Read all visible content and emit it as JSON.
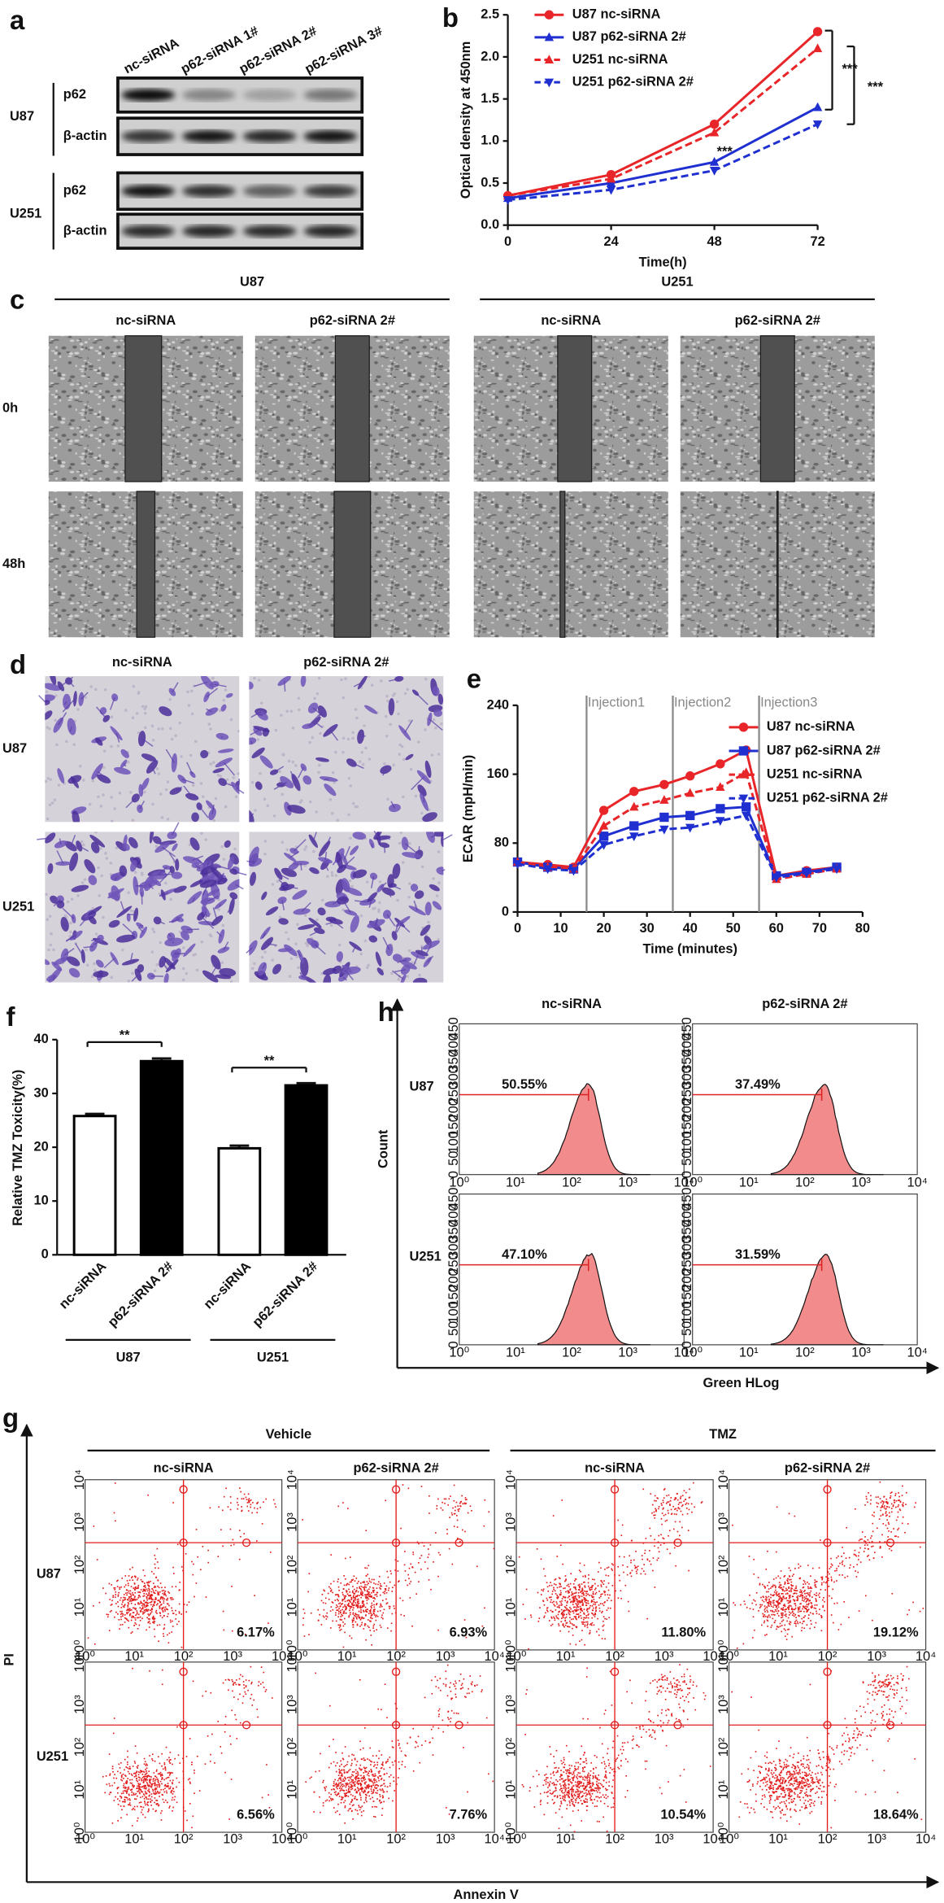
{
  "blot": {
    "label": "a",
    "lanes": [
      "nc-siRNA",
      "p62-siRNA 1#",
      "p62-siRNA 2#",
      "p62-siRNA 3#"
    ],
    "cells": [
      "U87",
      "U251"
    ],
    "proteins": [
      "p62",
      "β-actin"
    ]
  },
  "wound": {
    "label": "c",
    "cells": [
      "U87",
      "U251"
    ],
    "conditions": [
      "nc-siRNA",
      "p62-siRNA 2#"
    ],
    "times": [
      "0h",
      "48h"
    ]
  },
  "transwell": {
    "label": "d",
    "conditions": [
      "nc-siRNA",
      "p62-siRNA 2#"
    ],
    "cells": [
      "U87",
      "U251"
    ]
  },
  "flow": {
    "label": "h",
    "conditions": [
      "nc-siRNA",
      "p62-siRNA 2#"
    ],
    "cells": [
      "U87",
      "U251"
    ],
    "percent": [
      [
        "50.55%",
        "37.49%"
      ],
      [
        "47.10%",
        "31.59%"
      ]
    ],
    "xlabel": "Green HLog",
    "ylabel": "Count",
    "yticks": [
      0,
      50,
      100,
      150,
      200,
      250,
      300,
      350,
      400,
      450
    ],
    "xticks": [
      "10⁰",
      "10¹",
      "10²",
      "10³",
      "10⁴"
    ]
  },
  "apoptosis": {
    "label": "g",
    "treatments": [
      "Vehicle",
      "TMZ"
    ],
    "conditions": [
      "nc-siRNA",
      "p62-siRNA 2#"
    ],
    "cells": [
      "U87",
      "U251"
    ],
    "percent": [
      [
        "6.17%",
        "6.93%",
        "11.80%",
        "19.12%"
      ],
      [
        "6.56%",
        "7.76%",
        "10.54%",
        "18.64%"
      ]
    ],
    "xlabel": "Annexin V",
    "ylabel": "PI",
    "ticks": [
      "10⁰",
      "10¹",
      "10²",
      "10³",
      "10⁴"
    ]
  },
  "chart_data": [
    {
      "type": "line",
      "panel": "b",
      "x": [
        0,
        24,
        48,
        72
      ],
      "xlim": [
        0,
        72
      ],
      "xticks": [
        0,
        24,
        48,
        72
      ],
      "ylim": [
        0,
        2.5
      ],
      "yticks": [
        {
          "value": 0,
          "label": "0.0"
        },
        0.5,
        {
          "value": 1,
          "label": "1.0"
        },
        1.5,
        {
          "value": 2,
          "label": "2.0"
        },
        2.5
      ],
      "xlabel": "Time(h)",
      "ylabel": "Optical density at 450nm",
      "annotations": [
        "***",
        "***",
        "***"
      ],
      "series": [
        {
          "name": "U87 nc-siRNA",
          "color": "#e8262a",
          "dash": false,
          "marker": "circle",
          "values": [
            0.35,
            0.6,
            1.2,
            2.3
          ]
        },
        {
          "name": "U87 p62-siRNA 2#",
          "color": "#1f2fd0",
          "dash": false,
          "marker": "triangle",
          "values": [
            0.32,
            0.5,
            0.75,
            1.4
          ]
        },
        {
          "name": "U251 nc-siRNA",
          "color": "#e8262a",
          "dash": true,
          "marker": "triangle",
          "values": [
            0.35,
            0.55,
            1.1,
            2.1
          ]
        },
        {
          "name": "U251 p62-siRNA 2#",
          "color": "#1f2fd0",
          "dash": true,
          "marker": "triangle-down",
          "values": [
            0.3,
            0.42,
            0.65,
            1.2
          ]
        }
      ]
    },
    {
      "type": "line",
      "panel": "e",
      "x": [
        0,
        7,
        13,
        20,
        27,
        34,
        40,
        47,
        53,
        60,
        67,
        74
      ],
      "xlim": [
        0,
        80
      ],
      "xticks": [
        0,
        10,
        20,
        30,
        40,
        50,
        60,
        70,
        80
      ],
      "ylim": [
        0,
        240
      ],
      "yticks": [
        0,
        80,
        160,
        240
      ],
      "xlabel": "Time (minutes)",
      "ylabel": "ECAR (mpH/min)",
      "injections": [
        {
          "x": 16,
          "label": "Injection1"
        },
        {
          "x": 36,
          "label": "Injection2"
        },
        {
          "x": 56,
          "label": "Injection3"
        }
      ],
      "series": [
        {
          "name": "U87 nc-siRNA",
          "color": "#e8262a",
          "dash": false,
          "marker": "circle",
          "values": [
            58,
            55,
            52,
            118,
            140,
            148,
            158,
            172,
            188,
            42,
            48,
            52
          ]
        },
        {
          "name": "U87 p62-siRNA 2#",
          "color": "#1f2fd0",
          "dash": false,
          "marker": "square",
          "values": [
            58,
            52,
            50,
            88,
            100,
            110,
            112,
            120,
            122,
            42,
            46,
            52
          ]
        },
        {
          "name": "U251 nc-siRNA",
          "color": "#e8262a",
          "dash": true,
          "marker": "triangle",
          "values": [
            58,
            52,
            50,
            100,
            122,
            130,
            138,
            145,
            162,
            38,
            44,
            50
          ]
        },
        {
          "name": "U251 p62-siRNA 2#",
          "color": "#1f2fd0",
          "dash": true,
          "marker": "triangle-down",
          "values": [
            56,
            50,
            48,
            78,
            88,
            96,
            98,
            106,
            112,
            40,
            45,
            50
          ]
        }
      ]
    },
    {
      "type": "bar",
      "panel": "f",
      "categories": [
        "nc-siRNA",
        "p62-siRNA 2#",
        "nc-siRNA",
        "p62-siRNA 2#"
      ],
      "values": [
        25.8,
        36,
        19.8,
        31.5
      ],
      "errors": [
        0.4,
        0.5,
        0.5,
        0.4
      ],
      "colors": [
        "#ffffff",
        "#000000",
        "#ffffff",
        "#000000"
      ],
      "groups": [
        "U87",
        "U251"
      ],
      "ylim": [
        0,
        40
      ],
      "yticks": [
        0,
        10,
        20,
        30,
        40
      ],
      "ylabel": "Relative TMZ Toxicity(%)",
      "annotations": [
        "**",
        "**"
      ]
    }
  ]
}
